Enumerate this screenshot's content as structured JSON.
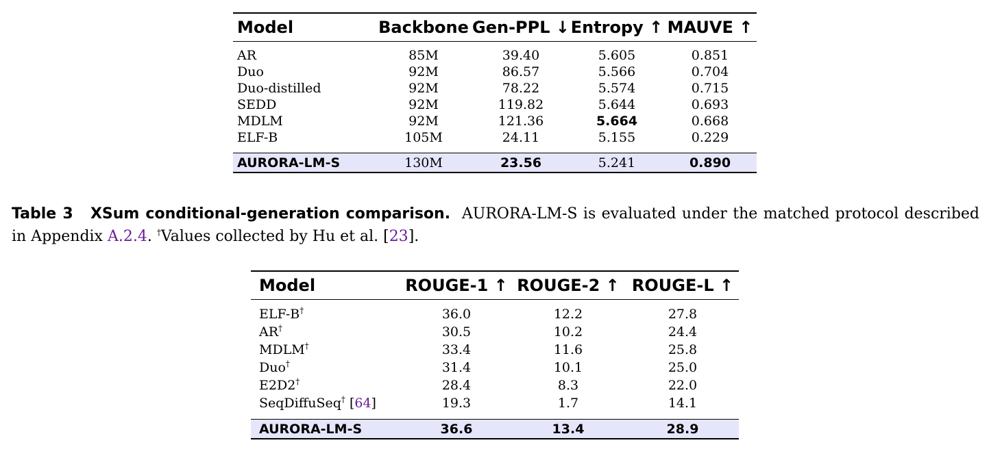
{
  "table_upper": {
    "headers": [
      "Model",
      "Backbone",
      "Gen-PPL ↓",
      "Entropy ↑",
      "MAUVE ↑"
    ],
    "rows": [
      {
        "model": "AR",
        "backbone": "85M",
        "gen_ppl": "39.40",
        "entropy": "5.605",
        "mauve": "0.851"
      },
      {
        "model": "Duo",
        "backbone": "92M",
        "gen_ppl": "86.57",
        "entropy": "5.566",
        "mauve": "0.704"
      },
      {
        "model": "Duo-distilled",
        "backbone": "92M",
        "gen_ppl": "78.22",
        "entropy": "5.574",
        "mauve": "0.715"
      },
      {
        "model": "SEDD",
        "backbone": "92M",
        "gen_ppl": "119.82",
        "entropy": "5.644",
        "mauve": "0.693"
      },
      {
        "model": "MDLM",
        "backbone": "92M",
        "gen_ppl": "121.36",
        "entropy": "5.664",
        "mauve": "0.668"
      },
      {
        "model": "ELF-B",
        "backbone": "105M",
        "gen_ppl": "24.11",
        "entropy": "5.155",
        "mauve": "0.229"
      }
    ],
    "highlight": {
      "model": "AURORA-LM-S",
      "backbone": "130M",
      "gen_ppl": "23.56",
      "entropy": "5.241",
      "mauve": "0.890"
    }
  },
  "caption": {
    "label": "Table 3",
    "title": "XSum conditional-generation comparison.",
    "text_a": "AURORA-LM-S is evaluated under the matched protocol described in Appendix",
    "appendix_ref": "A.2.4",
    "text_b": ".",
    "dagger": "†",
    "text_c": "Values collected by Hu et al. [",
    "cite": "23",
    "text_d": "]."
  },
  "table_lower": {
    "headers": [
      "Model",
      "ROUGE-1 ↑",
      "ROUGE-2 ↑",
      "ROUGE-L ↑"
    ],
    "rows": [
      {
        "model": "ELF-B",
        "mark": "†",
        "cite": "",
        "r1": "36.0",
        "r2": "12.2",
        "rl": "27.8"
      },
      {
        "model": "AR",
        "mark": "†",
        "cite": "",
        "r1": "30.5",
        "r2": "10.2",
        "rl": "24.4"
      },
      {
        "model": "MDLM",
        "mark": "†",
        "cite": "",
        "r1": "33.4",
        "r2": "11.6",
        "rl": "25.8"
      },
      {
        "model": "Duo",
        "mark": "†",
        "cite": "",
        "r1": "31.4",
        "r2": "10.1",
        "rl": "25.0"
      },
      {
        "model": "E2D2",
        "mark": "†",
        "cite": "",
        "r1": "28.4",
        "r2": "8.3",
        "rl": "22.0"
      },
      {
        "model": "SeqDiffuSeq",
        "mark": "†",
        "cite": "64",
        "r1": "19.3",
        "r2": "1.7",
        "rl": "14.1"
      }
    ],
    "highlight": {
      "model": "AURORA-LM-S",
      "r1": "36.6",
      "r2": "13.4",
      "rl": "28.9"
    }
  },
  "colors": {
    "highlight_row": "#e6e6fb",
    "link": "#6a1b9a"
  }
}
